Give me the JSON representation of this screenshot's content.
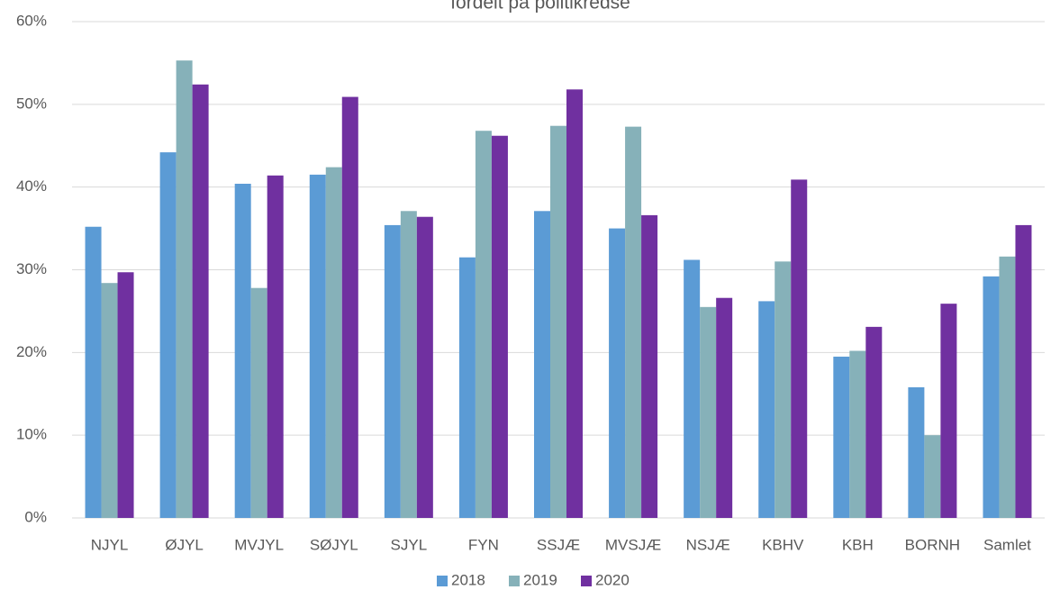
{
  "chart_data": {
    "type": "bar",
    "title": "fordelt på politikredse",
    "categories": [
      "NJYL",
      "ØJYL",
      "MVJYL",
      "SØJYL",
      "SJYL",
      "FYN",
      "SSJÆ",
      "MVSJÆ",
      "NSJÆ",
      "KBHV",
      "KBH",
      "BORNH",
      "Samlet"
    ],
    "series": [
      {
        "name": "2018",
        "color": "#5b9bd5",
        "values": [
          35.2,
          44.2,
          40.4,
          41.5,
          35.4,
          31.5,
          37.1,
          35.0,
          31.2,
          26.2,
          19.5,
          15.8,
          29.2
        ]
      },
      {
        "name": "2019",
        "color": "#86b1b9",
        "values": [
          28.4,
          55.3,
          27.8,
          42.4,
          37.1,
          46.8,
          47.4,
          47.3,
          25.5,
          31.0,
          20.2,
          10.0,
          31.6
        ]
      },
      {
        "name": "2020",
        "color": "#7030a0",
        "values": [
          29.7,
          52.4,
          41.4,
          50.9,
          36.4,
          46.2,
          51.8,
          36.6,
          26.6,
          40.9,
          23.1,
          25.9,
          35.4
        ]
      }
    ],
    "ylim": [
      0,
      60
    ],
    "yticks": [
      {
        "value": 0,
        "label": "0%"
      },
      {
        "value": 10,
        "label": "10%"
      },
      {
        "value": 20,
        "label": "20%"
      },
      {
        "value": 30,
        "label": "30%"
      },
      {
        "value": 40,
        "label": "40%"
      },
      {
        "value": 50,
        "label": "50%"
      },
      {
        "value": 60,
        "label": "60%"
      }
    ],
    "grid": true,
    "legend": "bottom"
  }
}
